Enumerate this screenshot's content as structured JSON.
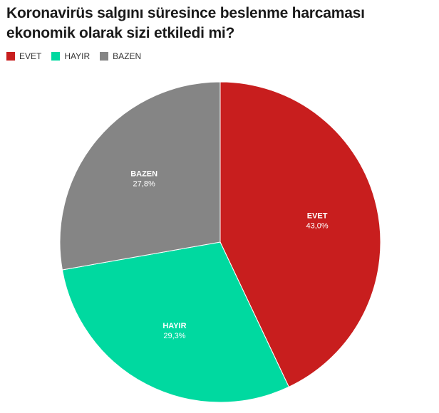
{
  "title": "Koronavirüs salgını süresince beslenme harcaması ekonomik olarak sizi etkiledi mi?",
  "legend": [
    {
      "label": "EVET",
      "color": "#c81e1e"
    },
    {
      "label": "HAYIR",
      "color": "#00d9a0"
    },
    {
      "label": "BAZEN",
      "color": "#858585"
    }
  ],
  "chart_data": {
    "type": "pie",
    "title": "Koronavirüs salgını süresince beslenme harcaması ekonomik olarak sizi etkiledi mi?",
    "legend_position": "top-left",
    "slices": [
      {
        "label": "EVET",
        "value": 43.0,
        "display": "43,0%",
        "color": "#c81e1e"
      },
      {
        "label": "HAYIR",
        "value": 29.3,
        "display": "29,3%",
        "color": "#00d9a0"
      },
      {
        "label": "BAZEN",
        "value": 27.8,
        "display": "27,8%",
        "color": "#858585"
      }
    ]
  }
}
